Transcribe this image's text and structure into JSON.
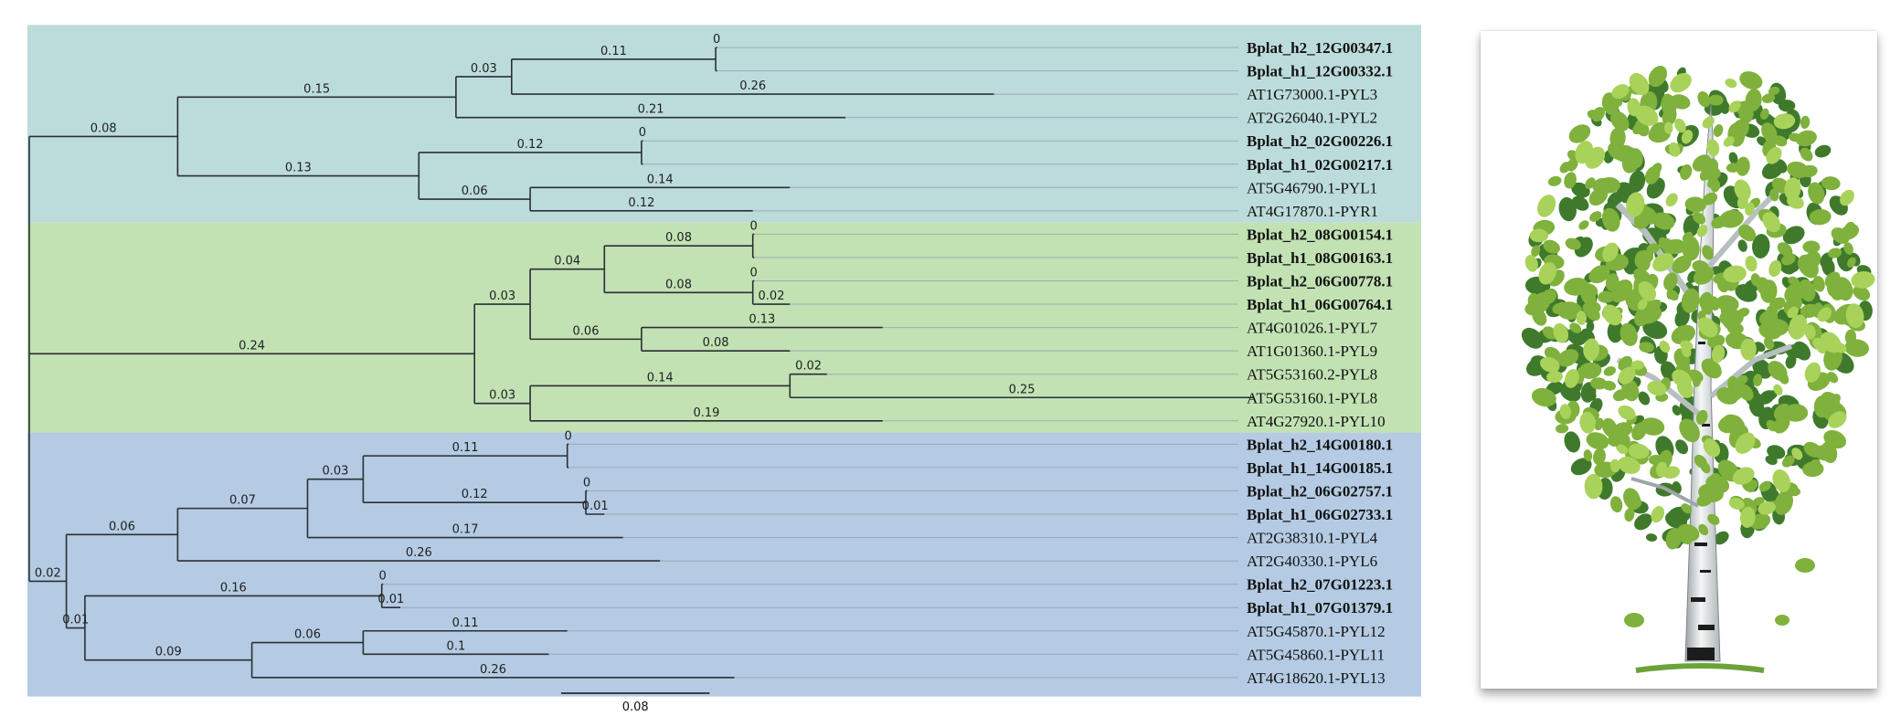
{
  "colors": {
    "clade_teal": "#bcdcdb",
    "clade_green": "#c2e2b4",
    "clade_blue": "#b4cbe3",
    "branch": "#2a2f33",
    "leaf_green": "#7fb13c",
    "leaf_dark": "#3f7a2c",
    "bark": "#e9ecec"
  },
  "tree": {
    "leaves": [
      {
        "label": "Bplat_h2_12G00347.1",
        "bold": true
      },
      {
        "label": "Bplat_h1_12G00332.1",
        "bold": true
      },
      {
        "label": "AT1G73000.1-PYL3",
        "bold": false
      },
      {
        "label": "AT2G26040.1-PYL2",
        "bold": false
      },
      {
        "label": "Bplat_h2_02G00226.1",
        "bold": true
      },
      {
        "label": "Bplat_h1_02G00217.1",
        "bold": true
      },
      {
        "label": "AT5G46790.1-PYL1",
        "bold": false
      },
      {
        "label": "AT4G17870.1-PYR1",
        "bold": false
      },
      {
        "label": "Bplat_h2_08G00154.1",
        "bold": true
      },
      {
        "label": "Bplat_h1_08G00163.1",
        "bold": true
      },
      {
        "label": "Bplat_h2_06G00778.1",
        "bold": true
      },
      {
        "label": "Bplat_h1_06G00764.1",
        "bold": true
      },
      {
        "label": "AT4G01026.1-PYL7",
        "bold": false
      },
      {
        "label": "AT1G01360.1-PYL9",
        "bold": false
      },
      {
        "label": "AT5G53160.2-PYL8",
        "bold": false
      },
      {
        "label": "AT5G53160.1-PYL8",
        "bold": false
      },
      {
        "label": "AT4G27920.1-PYL10",
        "bold": false
      },
      {
        "label": "Bplat_h2_14G00180.1",
        "bold": true
      },
      {
        "label": "Bplat_h1_14G00185.1",
        "bold": true
      },
      {
        "label": "Bplat_h2_06G02757.1",
        "bold": true
      },
      {
        "label": "Bplat_h1_06G02733.1",
        "bold": true
      },
      {
        "label": "AT2G38310.1-PYL4",
        "bold": false
      },
      {
        "label": "AT2G40330.1-PYL6",
        "bold": false
      },
      {
        "label": "Bplat_h2_07G01223.1",
        "bold": true
      },
      {
        "label": "Bplat_h1_07G01379.1",
        "bold": true
      },
      {
        "label": "AT5G45870.1-PYL12",
        "bold": false
      },
      {
        "label": "AT5G45860.1-PYL11",
        "bold": false
      },
      {
        "label": "AT4G18620.1-PYL13",
        "bold": false
      }
    ],
    "clades": [
      {
        "name": "clade-1",
        "first_leaf": 0,
        "last_leaf": 7,
        "color": "#bcdcdb"
      },
      {
        "name": "clade-2",
        "first_leaf": 8,
        "last_leaf": 16,
        "color": "#c2e2b4"
      },
      {
        "name": "clade-3",
        "first_leaf": 17,
        "last_leaf": 27,
        "color": "#b4cbe3"
      }
    ],
    "root": {
      "children": [
        {
          "bl": "0.08",
          "children": [
            {
              "bl": "0.15",
              "children": [
                {
                  "bl": "0.03",
                  "children": [
                    {
                      "bl": "0.11",
                      "children": [
                        {
                          "leaf": 0,
                          "bl": "0"
                        },
                        {
                          "leaf": 1,
                          "bl": ""
                        }
                      ]
                    },
                    {
                      "leaf": 2,
                      "bl": "0.26"
                    }
                  ]
                },
                {
                  "leaf": 3,
                  "bl": "0.21"
                }
              ]
            },
            {
              "bl": "0.13",
              "children": [
                {
                  "bl": "0.12",
                  "children": [
                    {
                      "leaf": 4,
                      "bl": "0"
                    },
                    {
                      "leaf": 5,
                      "bl": ""
                    }
                  ]
                },
                {
                  "bl": "0.06",
                  "children": [
                    {
                      "leaf": 6,
                      "bl": "0.14"
                    },
                    {
                      "leaf": 7,
                      "bl": "0.12"
                    }
                  ]
                }
              ]
            }
          ]
        },
        {
          "bl": "0.24",
          "children": [
            {
              "bl": "0.03",
              "children": [
                {
                  "bl": "0.04",
                  "children": [
                    {
                      "bl": "0.08",
                      "children": [
                        {
                          "leaf": 8,
                          "bl": "0"
                        },
                        {
                          "leaf": 9,
                          "bl": ""
                        }
                      ]
                    },
                    {
                      "bl": "0.08",
                      "children": [
                        {
                          "leaf": 10,
                          "bl": "0"
                        },
                        {
                          "leaf": 11,
                          "bl": "0.02"
                        }
                      ]
                    }
                  ]
                },
                {
                  "bl": "0.06",
                  "children": [
                    {
                      "leaf": 12,
                      "bl": "0.13"
                    },
                    {
                      "leaf": 13,
                      "bl": "0.08"
                    }
                  ]
                }
              ]
            },
            {
              "bl": "0.03",
              "children": [
                {
                  "bl": "0.14",
                  "children": [
                    {
                      "leaf": 14,
                      "bl": "0.02"
                    },
                    {
                      "leaf": 15,
                      "bl": "0.25"
                    }
                  ]
                },
                {
                  "leaf": 16,
                  "bl": "0.19"
                }
              ]
            }
          ]
        },
        {
          "bl": "0.02",
          "children": [
            {
              "bl": "0.06",
              "children": [
                {
                  "bl": "0.07",
                  "children": [
                    {
                      "bl": "0.03",
                      "children": [
                        {
                          "bl": "0.11",
                          "children": [
                            {
                              "leaf": 17,
                              "bl": "0"
                            },
                            {
                              "leaf": 18,
                              "bl": ""
                            }
                          ]
                        },
                        {
                          "bl": "0.12",
                          "children": [
                            {
                              "leaf": 19,
                              "bl": "0"
                            },
                            {
                              "leaf": 20,
                              "bl": "0.01"
                            }
                          ]
                        }
                      ]
                    },
                    {
                      "leaf": 21,
                      "bl": "0.17"
                    }
                  ]
                },
                {
                  "leaf": 22,
                  "bl": "0.26"
                }
              ]
            },
            {
              "bl": "0.01",
              "children": [
                {
                  "bl": "0.16",
                  "children": [
                    {
                      "leaf": 23,
                      "bl": "0"
                    },
                    {
                      "leaf": 24,
                      "bl": "0.01"
                    }
                  ]
                },
                {
                  "bl": "0.09",
                  "children": [
                    {
                      "bl": "0.06",
                      "children": [
                        {
                          "leaf": 25,
                          "bl": "0.11"
                        },
                        {
                          "leaf": 26,
                          "bl": "0.1"
                        }
                      ]
                    },
                    {
                      "leaf": 27,
                      "bl": "0.26"
                    }
                  ]
                }
              ]
            }
          ]
        }
      ]
    },
    "scale_bar": {
      "label": "0.08",
      "length": 0.08
    }
  }
}
